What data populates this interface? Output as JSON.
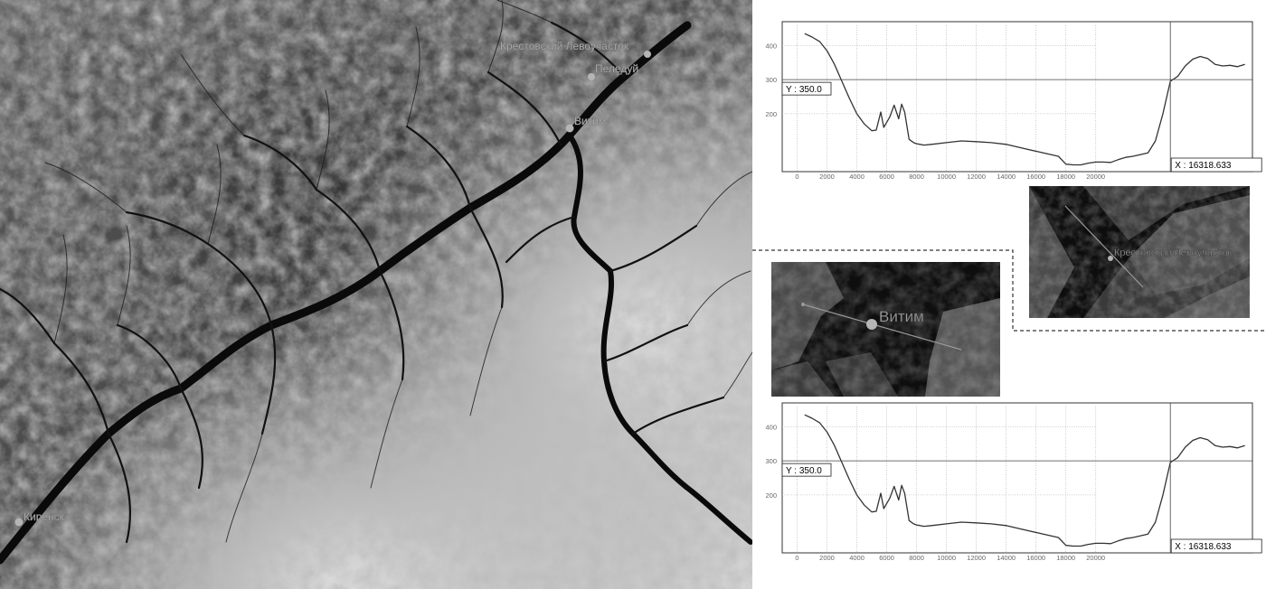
{
  "map": {
    "labels": {
      "krestovsky": "Крестовский Левоучасток",
      "peledui": "Пеледуй",
      "vitim": "Витим",
      "kirensk": "Киренск"
    }
  },
  "inset_vitim": {
    "label": "Витим"
  },
  "inset_krest": {
    "label": "Крестовский Левоучасток"
  },
  "chart_data": [
    {
      "type": "line",
      "title": "",
      "xlabel": "",
      "ylabel": "",
      "x_ticks": [
        "0",
        "2000",
        "4000",
        "6000",
        "8000",
        "10000",
        "12000",
        "14000",
        "16000",
        "18000",
        "20000"
      ],
      "y_ticks": [
        "200",
        "300",
        "400"
      ],
      "xlim": [
        -1000,
        30500
      ],
      "ylim": [
        30,
        470
      ],
      "grid": true,
      "series": [
        {
          "x": [
            500,
            1000,
            1500,
            2000,
            2500,
            3000,
            3500,
            4000,
            4500,
            5000,
            5300,
            5600,
            5800,
            6000,
            6200,
            6500,
            6800,
            7000,
            7200,
            7500,
            7800,
            8000,
            8500,
            9000,
            10000,
            11000,
            12000,
            13000,
            14000,
            15000,
            16000,
            17000,
            17500,
            18000,
            18500,
            19000,
            19500,
            20000,
            20500,
            21000,
            21500,
            22000,
            22500,
            23000,
            23500,
            24000,
            24500,
            25000,
            25500,
            26000,
            26500,
            27000,
            27500,
            28000,
            28500,
            29000,
            29500,
            30000
          ],
          "y": [
            435,
            425,
            412,
            385,
            345,
            295,
            245,
            200,
            170,
            150,
            152,
            205,
            160,
            175,
            190,
            225,
            185,
            228,
            205,
            125,
            115,
            112,
            108,
            110,
            115,
            120,
            118,
            115,
            110,
            100,
            90,
            80,
            75,
            52,
            50,
            50,
            55,
            58,
            58,
            57,
            65,
            72,
            75,
            80,
            85,
            120,
            200,
            295,
            310,
            340,
            360,
            368,
            362,
            345,
            340,
            342,
            338,
            345
          ]
        }
      ],
      "crosshair": {
        "x_readout": "X : 16318.633",
        "y_readout": "Y : 350.0"
      }
    },
    {
      "type": "line",
      "title": "",
      "xlabel": "",
      "ylabel": "",
      "x_ticks": [
        "0",
        "2000",
        "4000",
        "6000",
        "8000",
        "10000",
        "12000",
        "14000",
        "16000",
        "18000",
        "20000"
      ],
      "y_ticks": [
        "200",
        "300",
        "400"
      ],
      "xlim": [
        -1000,
        30500
      ],
      "ylim": [
        30,
        470
      ],
      "grid": true,
      "series": [
        {
          "x": [
            500,
            1000,
            1500,
            2000,
            2500,
            3000,
            3500,
            4000,
            4500,
            5000,
            5300,
            5600,
            5800,
            6000,
            6200,
            6500,
            6800,
            7000,
            7200,
            7500,
            7800,
            8000,
            8500,
            9000,
            10000,
            11000,
            12000,
            13000,
            14000,
            15000,
            16000,
            17000,
            17500,
            18000,
            18500,
            19000,
            19500,
            20000,
            20500,
            21000,
            21500,
            22000,
            22500,
            23000,
            23500,
            24000,
            24500,
            25000,
            25500,
            26000,
            26500,
            27000,
            27500,
            28000,
            28500,
            29000,
            29500,
            30000
          ],
          "y": [
            435,
            425,
            412,
            385,
            345,
            295,
            245,
            200,
            170,
            150,
            152,
            205,
            160,
            175,
            190,
            225,
            185,
            228,
            205,
            125,
            115,
            112,
            108,
            110,
            115,
            120,
            118,
            115,
            110,
            100,
            90,
            80,
            75,
            52,
            50,
            50,
            55,
            58,
            58,
            57,
            65,
            72,
            75,
            80,
            85,
            120,
            200,
            295,
            310,
            340,
            360,
            368,
            362,
            345,
            340,
            342,
            338,
            345
          ]
        }
      ],
      "crosshair": {
        "x_readout": "X : 16318.633",
        "y_readout": "Y : 350.0"
      }
    }
  ],
  "colors": {
    "marker": "#b5b5b5",
    "label": "#a8a8a8",
    "line": "#333333",
    "grid": "#bdbdbd",
    "river": "#0a0a0a"
  }
}
